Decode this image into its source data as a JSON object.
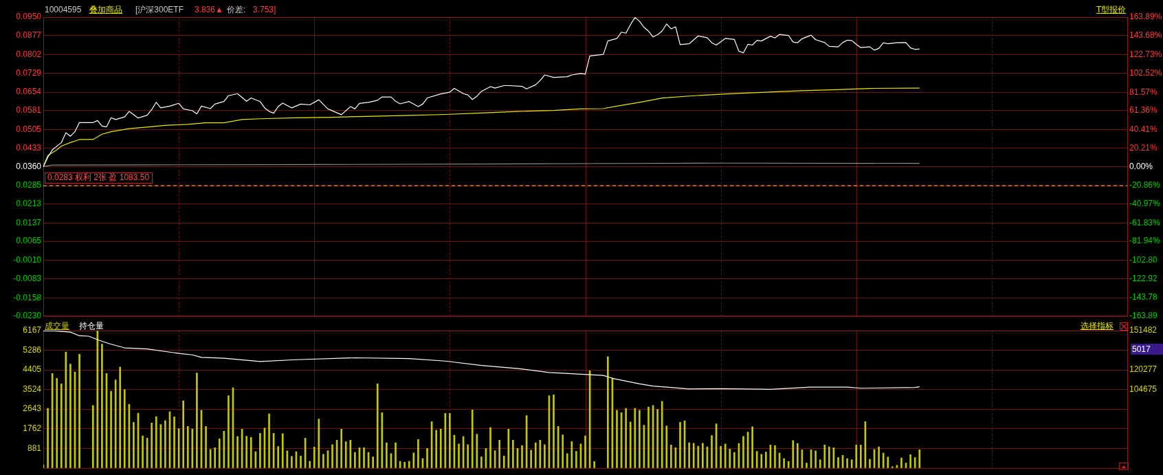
{
  "chart_data": [
    {
      "type": "line",
      "annotations": [
        "10004595",
        "叠加商品",
        "[沪深300ETF",
        "3.836▲",
        "价差:",
        "3.753]",
        "T型报价"
      ],
      "categories": [
        null,
        null,
        null,
        null,
        null,
        null,
        null,
        null,
        null,
        null,
        null,
        null,
        null,
        null,
        null,
        null,
        null,
        null,
        null,
        null,
        null,
        null,
        null,
        null,
        null,
        null,
        null,
        null,
        null,
        null,
        null,
        null,
        null,
        null,
        null,
        null,
        null,
        null,
        null,
        null,
        null,
        null,
        null,
        null,
        null,
        null,
        null,
        null,
        null,
        null,
        null,
        null,
        null,
        null,
        null,
        null,
        null,
        null,
        null,
        null,
        null,
        null,
        null,
        null,
        null,
        null,
        null,
        null,
        null,
        null,
        null,
        null,
        null,
        null,
        null,
        null,
        null,
        null,
        null,
        null,
        null,
        null,
        null,
        null,
        null,
        null,
        null,
        null,
        null,
        null,
        null,
        null,
        null,
        null,
        null,
        null,
        null,
        null,
        null,
        null,
        null,
        null,
        null,
        null,
        null,
        null,
        null,
        null,
        null,
        null,
        null,
        null,
        null,
        null,
        null,
        null,
        null,
        null,
        null,
        null,
        null,
        null,
        null,
        null,
        null,
        null,
        null,
        null,
        null,
        null,
        null,
        null,
        null,
        null,
        null,
        null,
        null,
        null,
        null,
        null,
        null,
        null,
        null,
        null,
        null,
        null,
        null,
        null,
        null,
        null,
        null,
        null,
        null,
        null,
        null,
        null,
        null,
        null,
        null,
        null,
        null,
        null,
        null,
        null,
        null,
        null,
        null,
        null,
        null,
        null,
        null,
        null,
        null,
        null,
        null,
        null,
        null,
        null,
        null,
        null,
        null,
        null,
        null,
        null,
        null,
        null,
        null,
        null,
        null,
        null,
        null,
        null,
        null,
        null,
        null,
        null,
        null,
        null,
        null,
        null,
        null,
        null,
        null,
        null,
        null,
        null,
        null,
        null,
        null,
        null,
        null,
        null,
        null,
        null,
        null,
        null,
        null,
        null,
        null,
        null,
        null,
        null,
        null,
        null,
        null,
        null,
        null,
        null,
        null,
        null,
        null,
        null,
        null,
        null,
        null,
        null,
        null,
        null,
        null,
        null,
        null
      ],
      "ylim": [
        -0.023,
        0.095
      ],
      "yticks": [
        {
          "value": 0.095,
          "label": "0.0950"
        },
        0.0877,
        0.0802,
        0.0729,
        0.0654,
        0.0581,
        0.0505,
        0.0433,
        {
          "value": 0.036,
          "label": "0.0360"
        },
        0.0285,
        0.0213,
        0.0137,
        0.0065,
        {
          "value": -0.001,
          "label": "-0.0010"
        },
        -0.0083,
        -0.0158,
        {
          "value": -0.023,
          "label": "-0.0230"
        }
      ],
      "y2lim": [
        -163.89,
        163.89
      ],
      "y2ticks": [
        {
          "value": 163.89,
          "label": "163.89%"
        },
        {
          "value": 143.68,
          "label": "143.68%"
        },
        {
          "value": 122.73,
          "label": "122.73%"
        },
        {
          "value": 102.52,
          "label": "102.52%"
        },
        {
          "value": 81.57,
          "label": "81.57%"
        },
        {
          "value": 61.36,
          "label": "61.36%"
        },
        {
          "value": 40.41,
          "label": "40.41%"
        },
        {
          "value": 20.21,
          "label": "20.21%"
        },
        {
          "value": 0,
          "label": "0.00%"
        },
        {
          "value": -20.86,
          "label": "-20.86%"
        },
        {
          "value": -40.97,
          "label": "-40.97%"
        },
        {
          "value": -61.83,
          "label": "-61.83%"
        },
        {
          "value": -81.94,
          "label": "-81.94%"
        },
        {
          "value": -102.8,
          "label": "-102.80"
        },
        {
          "value": -122.92,
          "label": "-122.92"
        },
        {
          "value": -143.78,
          "label": "-143.78"
        },
        {
          "value": -163.89,
          "label": "-163.89"
        }
      ],
      "grid": true,
      "marker": "none",
      "ref_lines": [
        {
          "axis": "y",
          "value": 0.0285,
          "label": "0.0283 权利 2张 盈 1083.50",
          "color": "#ff9900",
          "line_style": "dashed"
        }
      ],
      "series": [
        {
          "color": "#ffffff",
          "values": [
            0.036,
            0.0397,
            0.0426,
            null,
            0.0455,
            0.0494,
            0.048,
            0.0498,
            0.0534,
            null,
            null,
            0.0534,
            0.0542,
            0.052,
            0.0517,
            0.0553,
            0.0546,
            null,
            0.0556,
            0.0578,
            null,
            0.0552,
            null,
            0.0563,
            0.0585,
            0.0614,
            0.0592,
            null,
            0.0599,
            null,
            0.061,
            0.0588,
            null,
            0.0581,
            0.0568,
            0.0599,
            null,
            0.0589,
            0.0607,
            null,
            0.0617,
            0.064,
            null,
            0.0648,
            null,
            0.0618,
            0.0631,
            null,
            0.0617,
            0.0592,
            0.0578,
            0.0571,
            0.0597,
            0.0611,
            null,
            0.0592,
            null,
            0.0607,
            null,
            0.0604,
            null,
            0.0624,
            null,
            0.0588,
            null,
            null,
            0.0565,
            0.0581,
            0.0597,
            0.0588,
            0.061,
            null,
            0.0614,
            null,
            0.0622,
            0.0635,
            null,
            0.0635,
            0.0618,
            0.0608,
            null,
            0.0617,
            null,
            0.0597,
            0.0607,
            0.0631,
            null,
            null,
            0.0647,
            null,
            0.0654,
            0.0669,
            null,
            0.0648,
            0.0643,
            0.0625,
            0.0638,
            0.0657,
            null,
            0.0676,
            0.067,
            null,
            0.068,
            0.068,
            null,
            null,
            0.0677,
            0.0667,
            null,
            0.0683,
            0.07,
            0.0722,
            null,
            0.0712,
            null,
            null,
            0.0715,
            0.0722,
            null,
            0.0728,
            0.0725,
            0.0797,
            null,
            null,
            0.0803,
            0.0856,
            null,
            0.0866,
            0.0891,
            0.0887,
            0.092,
            0.0949,
            0.0934,
            0.091,
            0.0895,
            0.0872,
            0.0881,
            0.0895,
            0.0923,
            0.0904,
            0.0912,
            0.0842,
            null,
            0.0845,
            null,
            0.0876,
            null,
            0.0869,
            0.0849,
            0.084,
            null,
            0.0866,
            null,
            0.0862,
            0.0816,
            0.0809,
            0.0843,
            0.084,
            0.0858,
            0.0856,
            null,
            0.0875,
            0.0868,
            0.0882,
            null,
            0.0878,
            0.0852,
            0.0849,
            0.0865,
            null,
            0.0879,
            0.0861,
            null,
            0.085,
            0.0835,
            null,
            0.0833,
            0.085,
            0.0859,
            0.0858,
            0.0843,
            0.083,
            null,
            0.0833,
            0.082,
            0.0827,
            0.0849,
            0.0845,
            null,
            0.0849,
            null,
            0.085,
            0.0829,
            0.0823,
            0.0824,
            null,
            null,
            null,
            null,
            null,
            null,
            null,
            null,
            null,
            null,
            null,
            null,
            null,
            null,
            null,
            null,
            null,
            null,
            null,
            null,
            null,
            null,
            null,
            null,
            null,
            null,
            null,
            null,
            null,
            null,
            null,
            null,
            null,
            null,
            null,
            null,
            null,
            null,
            null,
            null,
            null,
            null,
            null,
            null,
            null,
            null
          ]
        },
        {
          "color": "#e8e800",
          "values": [
            0.036,
            0.0404,
            null,
            0.0426,
            0.0441,
            null,
            0.0455,
            null,
            0.0467,
            null,
            null,
            0.0467,
            null,
            0.0488,
            null,
            0.0498,
            null,
            null,
            null,
            0.051,
            null,
            null,
            null,
            0.0516,
            null,
            null,
            null,
            0.0523,
            null,
            null,
            null,
            null,
            0.0527,
            null,
            null,
            null,
            0.0533,
            null,
            null,
            null,
            0.0533,
            null,
            null,
            null,
            0.0546,
            null,
            null,
            null,
            0.0549,
            null,
            null,
            null,
            null,
            null,
            null,
            null,
            0.0553,
            null,
            null,
            null,
            null,
            null,
            null,
            null,
            0.0555,
            null,
            null,
            null,
            null,
            null,
            null,
            null,
            null,
            0.0559,
            null,
            null,
            null,
            null,
            null,
            null,
            null,
            0.0562,
            null,
            null,
            null,
            null,
            null,
            null,
            null,
            0.0566,
            null,
            null,
            null,
            null,
            null,
            null,
            null,
            0.0572,
            null,
            null,
            null,
            null,
            null,
            null,
            null,
            0.0578,
            null,
            null,
            null,
            null,
            null,
            null,
            null,
            0.0582,
            null,
            null,
            null,
            null,
            null,
            0.0588,
            null,
            null,
            null,
            null,
            0.0589,
            null,
            null,
            0.0599,
            null,
            null,
            null,
            null,
            0.0614,
            null,
            null,
            null,
            null,
            0.0631,
            null,
            null,
            null,
            null,
            null,
            null,
            0.064,
            null,
            null,
            null,
            null,
            null,
            null,
            null,
            0.0648,
            null,
            null,
            null,
            null,
            null,
            null,
            null,
            0.0654,
            null,
            null,
            null,
            null,
            null,
            null,
            null,
            0.066,
            null,
            null,
            null,
            null,
            null,
            null,
            null,
            0.0664,
            null,
            null,
            null,
            null,
            null,
            null,
            0.0669,
            null,
            null,
            null,
            null,
            null,
            null,
            null,
            null,
            null,
            null,
            0.067,
            null,
            null,
            null,
            null,
            null,
            null,
            null,
            null,
            null,
            null,
            null,
            null,
            null,
            null,
            null,
            null,
            null,
            null,
            null,
            null,
            null,
            null,
            null,
            null,
            null,
            null,
            null,
            null,
            null,
            null,
            null,
            null,
            null,
            null,
            null,
            null,
            null,
            null,
            null,
            null,
            null,
            null,
            null,
            null,
            null,
            null
          ]
        },
        {
          "color": "#8c8c8c",
          "values": [
            0.036,
            null,
            0.0366,
            null,
            null,
            null,
            null,
            null,
            null,
            null,
            null,
            null,
            null,
            null,
            null,
            null,
            null,
            null,
            null,
            null,
            0.0367,
            null,
            null,
            null,
            null,
            null,
            null,
            null,
            null,
            null,
            null,
            null,
            null,
            null,
            null,
            null,
            null,
            null,
            null,
            null,
            null,
            null,
            null,
            null,
            null,
            null,
            null,
            null,
            null,
            null,
            null,
            null,
            null,
            null,
            null,
            null,
            null,
            null,
            null,
            null,
            0.0368,
            null,
            null,
            null,
            null,
            null,
            null,
            null,
            null,
            null,
            null,
            null,
            null,
            null,
            null,
            null,
            null,
            null,
            null,
            null,
            null,
            null,
            null,
            null,
            null,
            null,
            null,
            null,
            null,
            null,
            null,
            null,
            null,
            null,
            null,
            null,
            null,
            null,
            null,
            null,
            null,
            null,
            null,
            null,
            null,
            null,
            null,
            null,
            null,
            null,
            null,
            null,
            null,
            null,
            null,
            null,
            null,
            null,
            null,
            null,
            0.0372,
            null,
            null,
            null,
            null,
            null,
            null,
            null,
            null,
            null,
            null,
            null,
            null,
            null,
            null,
            null,
            null,
            null,
            null,
            null,
            null,
            null,
            null,
            null,
            null,
            null,
            null,
            null,
            null,
            null,
            0.0374,
            null,
            null,
            null,
            null,
            null,
            null,
            null,
            null,
            null,
            null,
            null,
            null,
            null,
            null,
            null,
            null,
            null,
            null,
            null,
            null,
            null,
            null,
            null,
            null,
            null,
            null,
            null,
            null,
            null,
            null,
            null,
            null,
            null,
            null,
            null,
            null,
            null,
            null,
            null,
            null,
            null,
            null,
            null,
            0.0373,
            null,
            null,
            null,
            null,
            null,
            null,
            null,
            null,
            null,
            null,
            null,
            null,
            null,
            null,
            null,
            null,
            null,
            null,
            null,
            null,
            null,
            null,
            null,
            null,
            null,
            null,
            null,
            null,
            null,
            null,
            null,
            null,
            null,
            null,
            null,
            null,
            null,
            null,
            null,
            null,
            null,
            null,
            null,
            null,
            null,
            null
          ]
        }
      ]
    },
    {
      "type": "bar",
      "annotations": [
        "选择指标",
        "5017"
      ],
      "categories": [
        null,
        null,
        null,
        null,
        null,
        null,
        null,
        null,
        null,
        null,
        null,
        null,
        null,
        null,
        null,
        null,
        null,
        null,
        null,
        null,
        null,
        null,
        null,
        null,
        null,
        null,
        null,
        null,
        null,
        null,
        null,
        null,
        null,
        null,
        null,
        null,
        null,
        null,
        null,
        null,
        null,
        null,
        null,
        null,
        null,
        null,
        null,
        null,
        null,
        null,
        null,
        null,
        null,
        null,
        null,
        null,
        null,
        null,
        null,
        null,
        null,
        null,
        null,
        null,
        null,
        null,
        null,
        null,
        null,
        null,
        null,
        null,
        null,
        null,
        null,
        null,
        null,
        null,
        null,
        null,
        null,
        null,
        null,
        null,
        null,
        null,
        null,
        null,
        null,
        null,
        null,
        null,
        null,
        null,
        null,
        null,
        null,
        null,
        null,
        null,
        null,
        null,
        null,
        null,
        null,
        null,
        null,
        null,
        null,
        null,
        null,
        null,
        null,
        null,
        null,
        null,
        null,
        null,
        null,
        null,
        null,
        null,
        null,
        null,
        null,
        null,
        null,
        null,
        null,
        null,
        null,
        null,
        null,
        null,
        null,
        null,
        null,
        null,
        null,
        null,
        null,
        null,
        null,
        null,
        null,
        null,
        null,
        null,
        null,
        null,
        null,
        null,
        null,
        null,
        null,
        null,
        null,
        null,
        null,
        null,
        null,
        null,
        null,
        null,
        null,
        null,
        null,
        null,
        null,
        null,
        null,
        null,
        null,
        null,
        null,
        null,
        null,
        null,
        null,
        null,
        null,
        null,
        null,
        null,
        null,
        null,
        null,
        null,
        null,
        null,
        null,
        null,
        null,
        null,
        null,
        null,
        null,
        null,
        null,
        null,
        null,
        null,
        null,
        null,
        null,
        null,
        null,
        null,
        null,
        null,
        null,
        null,
        null,
        null,
        null,
        null,
        null,
        null,
        null,
        null,
        null,
        null,
        null,
        null,
        null,
        null,
        null,
        null,
        null,
        null,
        null,
        null,
        null,
        null,
        null,
        null,
        null,
        null,
        null,
        null,
        null
      ],
      "ylim": [
        0,
        6167
      ],
      "yticks": [
        881,
        1762,
        2643,
        3524,
        4405,
        5286,
        6167
      ],
      "y2lim": [
        42268,
        151482
      ],
      "y2ticks": [
        104675,
        120277,
        {
          "value": 135879,
          "label": null
        },
        151482
      ],
      "grid": true,
      "marker": "none",
      "series": [
        {
          "name": "成交量",
          "type": "bar",
          "color": "#c8c800",
          "values": [
            140,
            2680,
            4240,
            4030,
            3780,
            5210,
            4670,
            4310,
            5110,
            null,
            null,
            2810,
            6160,
            5560,
            4240,
            3450,
            3960,
            4540,
            3520,
            2860,
            2050,
            2460,
            1440,
            1340,
            2020,
            2310,
            1950,
            2130,
            2530,
            2300,
            1770,
            3020,
            1870,
            1750,
            4270,
            2590,
            1870,
            830,
            910,
            1310,
            1650,
            3250,
            3600,
            1410,
            1740,
            1430,
            1370,
            730,
            1560,
            1800,
            2430,
            1560,
            960,
            1540,
            770,
            520,
            730,
            540,
            1340,
            300,
            940,
            2200,
            620,
            780,
            1050,
            1250,
            1740,
            1180,
            1250,
            700,
            910,
            910,
            700,
            500,
            3780,
            2480,
            1130,
            650,
            1130,
            300,
            260,
            300,
            680,
            1280,
            420,
            880,
            2080,
            1700,
            1740,
            2450,
            2450,
            1470,
            1080,
            1410,
            1050,
            2610,
            1520,
            500,
            880,
            1820,
            780,
            1250,
            540,
            1740,
            1250,
            880,
            1010,
            2350,
            800,
            1130,
            1250,
            1050,
            3250,
            3290,
            1870,
            1490,
            650,
            1190,
            750,
            1080,
            1440,
            4370,
            290,
            null,
            null,
            5000,
            4040,
            2590,
            2480,
            2680,
            2070,
            2680,
            2590,
            1920,
            2740,
            2810,
            2630,
            2990,
            1890,
            1030,
            910,
            2050,
            2120,
            1130,
            1110,
            980,
            1110,
            950,
            1460,
            1980,
            980,
            1080,
            850,
            700,
            1100,
            1420,
            1610,
            1850,
            750,
            620,
            720,
            1030,
            1010,
            670,
            420,
            290,
            1230,
            1100,
            820,
            220,
            820,
            770,
            370,
            1030,
            950,
            910,
            470,
            570,
            420,
            370,
            1030,
            1030,
            2080,
            390,
            830,
            950,
            670,
            490,
            60,
            120,
            450,
            220,
            600,
            470,
            820,
            null,
            null,
            null,
            null,
            null,
            null,
            null,
            null,
            null,
            null,
            null,
            null,
            null,
            null,
            null,
            null,
            null,
            null,
            null,
            null,
            null,
            null,
            null,
            null,
            null,
            null,
            null,
            null,
            null,
            null,
            null,
            null,
            null,
            null,
            null,
            null,
            null,
            null,
            null,
            null,
            null,
            null,
            null,
            null,
            null,
            null
          ]
        },
        {
          "name": "持仓量",
          "type": "line",
          "axis": "y2",
          "color": "#ffffff",
          "values": [
            151200,
            null,
            151400,
            null,
            null,
            null,
            150300,
            null,
            147400,
            null,
            147100,
            null,
            null,
            143000,
            null,
            140700,
            null,
            null,
            137800,
            null,
            null,
            null,
            null,
            136900,
            null,
            null,
            null,
            null,
            null,
            null,
            133400,
            null,
            null,
            132200,
            null,
            130200,
            null,
            null,
            null,
            null,
            129600,
            null,
            null,
            null,
            null,
            null,
            null,
            null,
            127000,
            null,
            null,
            null,
            null,
            null,
            null,
            null,
            128400,
            null,
            null,
            null,
            null,
            null,
            null,
            null,
            null,
            null,
            null,
            null,
            null,
            129900,
            null,
            null,
            null,
            null,
            null,
            null,
            null,
            null,
            null,
            null,
            null,
            129300,
            null,
            null,
            null,
            null,
            null,
            null,
            null,
            127300,
            null,
            null,
            null,
            null,
            null,
            null,
            null,
            123800,
            null,
            null,
            null,
            null,
            null,
            null,
            null,
            121400,
            null,
            null,
            null,
            null,
            null,
            null,
            118200,
            null,
            null,
            null,
            null,
            null,
            null,
            116800,
            null,
            null,
            null,
            null,
            115900,
            null,
            113600,
            null,
            null,
            null,
            null,
            null,
            109200,
            null,
            null,
            107400,
            null,
            null,
            null,
            106300,
            null,
            null,
            null,
            105100,
            null,
            null,
            null,
            null,
            null,
            null,
            105400,
            null,
            null,
            null,
            null,
            null,
            null,
            null,
            null,
            null,
            null,
            104800,
            null,
            null,
            null,
            null,
            null,
            null,
            null,
            null,
            106600,
            null,
            null,
            null,
            null,
            null,
            null,
            null,
            106600,
            null,
            null,
            105700,
            null,
            null,
            null,
            null,
            null,
            null,
            null,
            null,
            null,
            null,
            null,
            106300,
            106900,
            null,
            null,
            null,
            null,
            null,
            null,
            null,
            null,
            null,
            null,
            null,
            null,
            null,
            null,
            null,
            null,
            null,
            null,
            null,
            null,
            null,
            null,
            null,
            null,
            null,
            null,
            null,
            null,
            null,
            null,
            null,
            null,
            null,
            null,
            null,
            null,
            null,
            null,
            null,
            null,
            null,
            null,
            null,
            null,
            null,
            null
          ]
        }
      ]
    }
  ]
}
